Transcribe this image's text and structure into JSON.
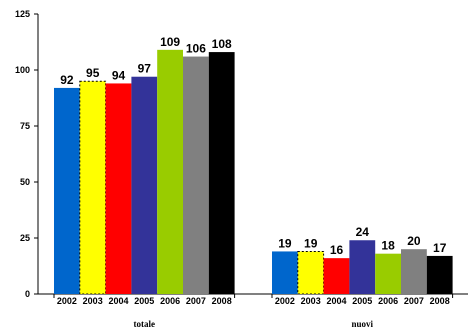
{
  "chart_data": {
    "type": "bar",
    "title": "",
    "xlabel": "",
    "ylabel": "",
    "ylim": [
      0,
      125
    ],
    "yticks": [
      0,
      25,
      50,
      75,
      100,
      125
    ],
    "grid": false,
    "legend": "none",
    "groups": [
      {
        "name": "totale",
        "categories": [
          "2002",
          "2003",
          "2004",
          "2005",
          "2006",
          "2007",
          "2008"
        ],
        "values": [
          92,
          95,
          94,
          97,
          109,
          106,
          108
        ]
      },
      {
        "name": "nuovi",
        "categories": [
          "2002",
          "2003",
          "2004",
          "2005",
          "2006",
          "2007",
          "2008"
        ],
        "values": [
          19,
          19,
          16,
          24,
          18,
          20,
          17
        ]
      }
    ],
    "bar_colors": [
      "#0066CC",
      "#FFFF00",
      "#FF0000",
      "#333399",
      "#99CC00",
      "#808080",
      "#000000"
    ],
    "highlight_dashed_category": "2003"
  }
}
